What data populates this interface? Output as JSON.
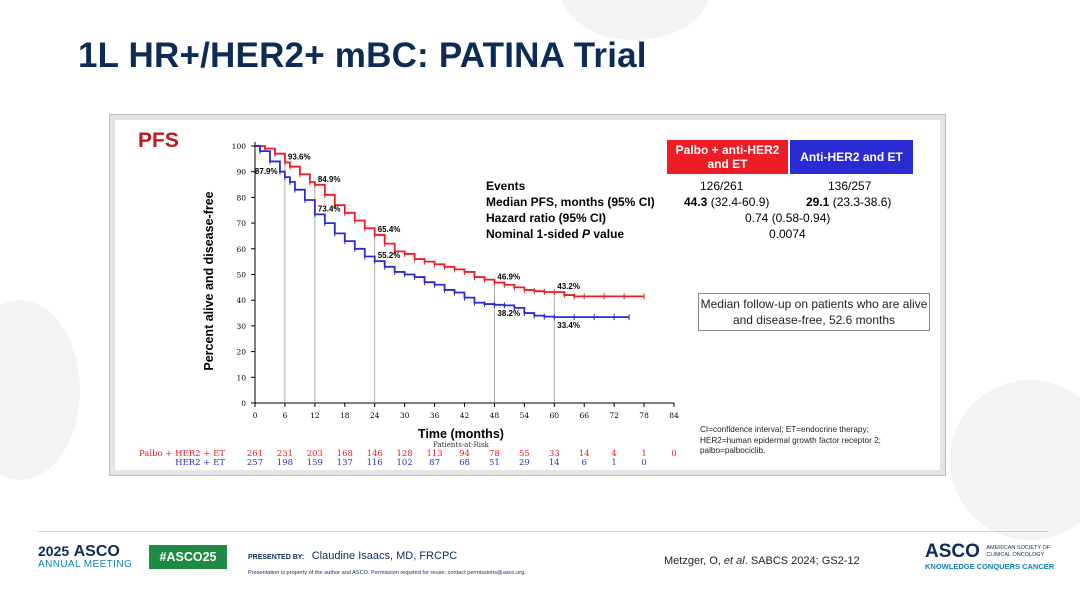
{
  "slide": {
    "title": "1L HR+/HER2+ mBC: PATINA Trial"
  },
  "stats_table": {
    "header_left": "Palbo + anti-HER2 and ET",
    "header_right": "Anti-HER2 and ET",
    "rows": [
      {
        "label": "Events",
        "left": "126/261",
        "right": "136/257"
      },
      {
        "label": "Median PFS, months (95% CI)",
        "left_bold": "44.3",
        "left": "(32.4-60.9)",
        "right_bold": "29.1",
        "right": "(23.3-38.6)"
      },
      {
        "label": "Hazard ratio (95% CI)",
        "center": "0.74 (0.58-0.94)"
      },
      {
        "label_pre": "Nominal 1-sided ",
        "label_italic": "P",
        "label_post": " value",
        "center": "0.0074"
      }
    ],
    "colors": {
      "left": "#ee1c24",
      "right": "#2b2bd4"
    }
  },
  "followup_note": "Median follow-up on patients who are alive and disease-free, 52.6 months",
  "footnote": "CI=confidence interval; ET=endocrine therapy; HER2=human epidermal growth factor receptor 2; palbo=palbociclib.",
  "chart_data": {
    "type": "line",
    "title": "PFS",
    "xlabel": "Time (months)",
    "ylabel": "Percent alive and disease-free",
    "xlim": [
      0,
      84
    ],
    "ylim": [
      0,
      100
    ],
    "x_ticks": [
      0,
      6,
      12,
      18,
      24,
      30,
      36,
      42,
      48,
      54,
      60,
      66,
      72,
      78,
      84
    ],
    "y_ticks": [
      0,
      10,
      20,
      30,
      40,
      50,
      60,
      70,
      80,
      90,
      100
    ],
    "series": [
      {
        "name": "Palbo + HER2 + ET",
        "color": "#ee1c24",
        "points": [
          [
            0,
            100
          ],
          [
            2,
            99
          ],
          [
            4,
            97
          ],
          [
            6,
            93.6
          ],
          [
            7,
            92
          ],
          [
            9,
            89
          ],
          [
            11,
            86
          ],
          [
            12,
            84.9
          ],
          [
            14,
            81
          ],
          [
            16,
            77
          ],
          [
            18,
            74
          ],
          [
            20,
            71
          ],
          [
            22,
            68
          ],
          [
            24,
            65.4
          ],
          [
            26,
            62
          ],
          [
            28,
            59
          ],
          [
            30,
            58
          ],
          [
            32,
            56
          ],
          [
            34,
            55
          ],
          [
            36,
            54
          ],
          [
            38,
            53
          ],
          [
            40,
            52
          ],
          [
            42,
            51
          ],
          [
            44,
            49
          ],
          [
            46,
            48
          ],
          [
            48,
            46.9
          ],
          [
            50,
            46
          ],
          [
            52,
            45
          ],
          [
            54,
            44
          ],
          [
            56,
            43.5
          ],
          [
            58,
            43.2
          ],
          [
            60,
            43.2
          ],
          [
            62,
            42
          ],
          [
            64,
            41.5
          ],
          [
            66,
            41.5
          ],
          [
            70,
            41.5
          ],
          [
            74,
            41.5
          ],
          [
            78,
            41.5
          ]
        ],
        "annotations": [
          [
            6,
            "93.6%"
          ],
          [
            12,
            "84.9%"
          ],
          [
            24,
            "65.4%"
          ],
          [
            48,
            "46.9%"
          ],
          [
            60,
            "43.2%"
          ]
        ],
        "at_risk": [
          "261",
          "231",
          "203",
          "168",
          "146",
          "128",
          "113",
          "94",
          "78",
          "55",
          "33",
          "14",
          "4",
          "1",
          "0"
        ]
      },
      {
        "name": "HER2 + ET",
        "color": "#2b2bd4",
        "points": [
          [
            0,
            100
          ],
          [
            1,
            98
          ],
          [
            3,
            94
          ],
          [
            5,
            90
          ],
          [
            6,
            87.9
          ],
          [
            7,
            86
          ],
          [
            8,
            83
          ],
          [
            10,
            79
          ],
          [
            12,
            73.4
          ],
          [
            14,
            70
          ],
          [
            16,
            66
          ],
          [
            18,
            63
          ],
          [
            20,
            60
          ],
          [
            22,
            57
          ],
          [
            24,
            55.2
          ],
          [
            26,
            53
          ],
          [
            28,
            51
          ],
          [
            30,
            50
          ],
          [
            32,
            49
          ],
          [
            34,
            47
          ],
          [
            36,
            46
          ],
          [
            38,
            44
          ],
          [
            40,
            43
          ],
          [
            42,
            41
          ],
          [
            44,
            39
          ],
          [
            46,
            38.5
          ],
          [
            48,
            38.2
          ],
          [
            50,
            38
          ],
          [
            52,
            37
          ],
          [
            54,
            35
          ],
          [
            56,
            34
          ],
          [
            58,
            33.6
          ],
          [
            60,
            33.4
          ],
          [
            64,
            33.4
          ],
          [
            68,
            33.4
          ],
          [
            72,
            33.4
          ],
          [
            75,
            33.4
          ]
        ],
        "annotations": [
          [
            6,
            "87.9%"
          ],
          [
            12,
            "73.4%"
          ],
          [
            24,
            "55.2%"
          ],
          [
            48,
            "38.2%"
          ],
          [
            60,
            "33.4%"
          ]
        ],
        "at_risk": [
          "257",
          "198",
          "159",
          "137",
          "116",
          "102",
          "87",
          "68",
          "51",
          "29",
          "14",
          "6",
          "1",
          "0"
        ]
      }
    ],
    "at_risk_title": "Patients-at-Risk"
  },
  "footer": {
    "meeting_year": "2025",
    "meeting_org": "ASCO",
    "meeting_name": "ANNUAL MEETING",
    "hashtag": "#ASCO25",
    "presented_by_label": "PRESENTED BY:",
    "presenter": "Claudine Isaacs, MD, FRCPC",
    "disclaimer": "Presentation is property of the author and ASCO. Permission required for reuse; contact permissions@asco.org.",
    "citation_pre": "Metzger, O, ",
    "citation_italic": "et al",
    "citation_post": ". SABCS 2024; GS2-12",
    "asco_logo": "ASCO",
    "asco_full_line1": "AMERICAN SOCIETY OF",
    "asco_full_line2": "CLINICAL ONCOLOGY",
    "asco_tagline": "KNOWLEDGE CONQUERS CANCER"
  }
}
